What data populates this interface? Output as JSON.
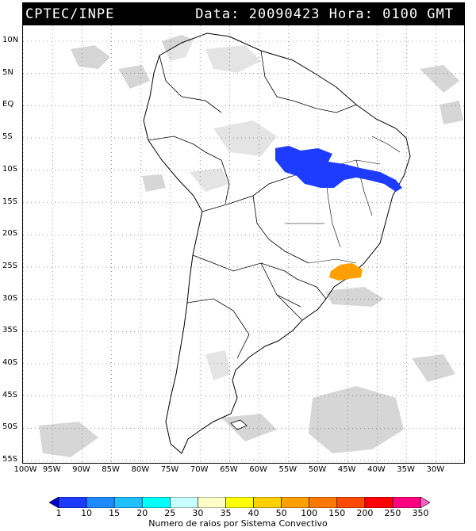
{
  "header": {
    "agency": "CPTEC/INPE",
    "datetime": "Data: 20090423 Hora: 0100 GMT"
  },
  "map": {
    "lat_labels": [
      "10N",
      "5N",
      "EQ",
      "5S",
      "10S",
      "15S",
      "20S",
      "25S",
      "30S",
      "35S",
      "40S",
      "45S",
      "50S",
      "55S"
    ],
    "lon_labels": [
      "100W",
      "95W",
      "90W",
      "85W",
      "80W",
      "75W",
      "70W",
      "65W",
      "60W",
      "55W",
      "50W",
      "45W",
      "40W",
      "35W",
      "30W"
    ],
    "gridlines": "dotted",
    "cloud_color": "#c8c8c8",
    "coast_color": "#000000"
  },
  "systems": [
    {
      "name": "central-brazil-system",
      "color_class": "10",
      "color": "#1e3cff"
    },
    {
      "name": "southeast-coast-system",
      "color_class": "100",
      "color": "#ffa000"
    }
  ],
  "colorbar": {
    "ticks": [
      "1",
      "10",
      "15",
      "20",
      "25",
      "30",
      "35",
      "40",
      "50",
      "100",
      "150",
      "200",
      "250",
      "350"
    ],
    "colors": [
      "#0000d0",
      "#1e3cff",
      "#1e8cff",
      "#20c0ff",
      "#00ffff",
      "#c8ffff",
      "#ffffc8",
      "#ffff00",
      "#ffd000",
      "#ffa000",
      "#ff7800",
      "#ff4b00",
      "#ff0000",
      "#ff0080",
      "#ff60c8"
    ],
    "caption": "Numero de raios por Sistema Convectivo"
  }
}
